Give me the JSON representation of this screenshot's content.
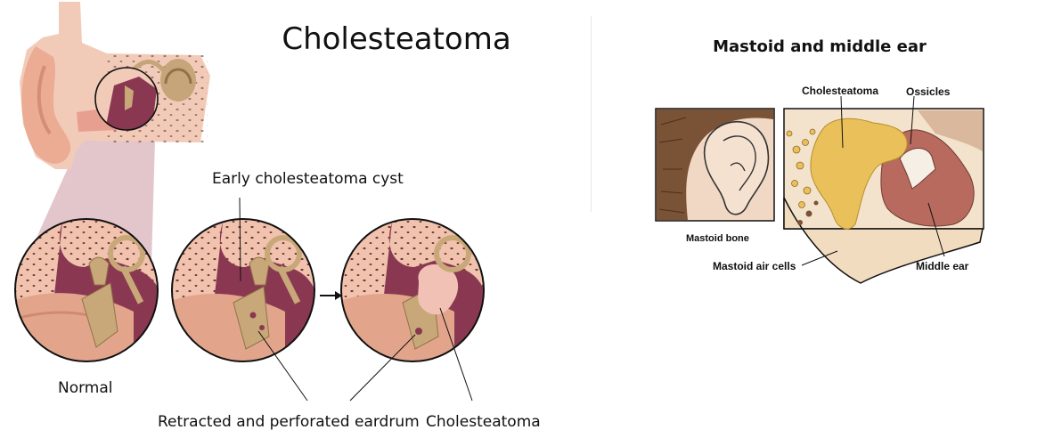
{
  "left_panel": {
    "title": "Cholesteatoma",
    "labels": {
      "early_cyst": "Early cholesteatoma cyst",
      "normal": "Normal",
      "retracted": "Retracted and perforated eardrum",
      "cholesteatoma": "Cholesteatoma"
    }
  },
  "right_panel": {
    "title": "Mastoid and middle ear",
    "labels": {
      "cholesteatoma": "Cholesteatoma",
      "ossicles": "Ossicles",
      "mastoid_bone": "Mastoid bone",
      "mastoid_air_cells": "Mastoid air cells",
      "middle_ear": "Middle ear"
    }
  },
  "colors": {
    "skin": "#f1c2ad",
    "skin_dark": "#e2a58c",
    "cavity": "#8a3852",
    "bone": "#c8a878",
    "cholesteatoma": "#e9c05a",
    "hair": "#7a5236",
    "middle_ear": "#b86a5e"
  }
}
